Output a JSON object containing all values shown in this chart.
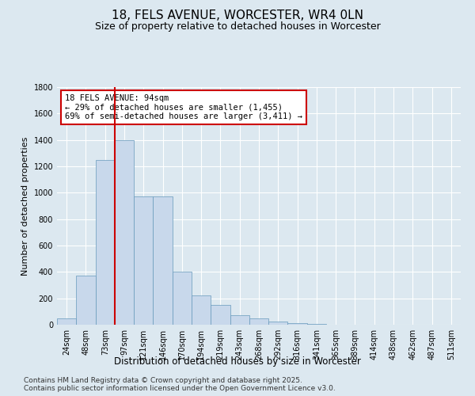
{
  "title1": "18, FELS AVENUE, WORCESTER, WR4 0LN",
  "title2": "Size of property relative to detached houses in Worcester",
  "xlabel": "Distribution of detached houses by size in Worcester",
  "ylabel": "Number of detached properties",
  "categories": [
    "24sqm",
    "48sqm",
    "73sqm",
    "97sqm",
    "121sqm",
    "146sqm",
    "170sqm",
    "194sqm",
    "219sqm",
    "243sqm",
    "268sqm",
    "292sqm",
    "316sqm",
    "341sqm",
    "365sqm",
    "389sqm",
    "414sqm",
    "438sqm",
    "462sqm",
    "487sqm",
    "511sqm"
  ],
  "values": [
    50,
    375,
    1250,
    1400,
    975,
    975,
    400,
    225,
    150,
    75,
    50,
    25,
    10,
    5,
    2,
    2,
    2,
    1,
    0,
    0,
    0
  ],
  "bar_color": "#c8d8eb",
  "bar_edge_color": "#6699bb",
  "vline_x_index": 3,
  "vline_color": "#cc0000",
  "annotation_text": "18 FELS AVENUE: 94sqm\n← 29% of detached houses are smaller (1,455)\n69% of semi-detached houses are larger (3,411) →",
  "annotation_box_color": "#ffffff",
  "annotation_box_edge": "#cc0000",
  "ylim": [
    0,
    1800
  ],
  "yticks": [
    0,
    200,
    400,
    600,
    800,
    1000,
    1200,
    1400,
    1600,
    1800
  ],
  "background_color": "#dce8f0",
  "grid_color": "#ffffff",
  "footer_text": "Contains HM Land Registry data © Crown copyright and database right 2025.\nContains public sector information licensed under the Open Government Licence v3.0.",
  "title1_fontsize": 11,
  "title2_fontsize": 9,
  "annotation_fontsize": 7.5,
  "tick_fontsize": 7,
  "ylabel_fontsize": 8,
  "xlabel_fontsize": 8.5,
  "footer_fontsize": 6.5
}
